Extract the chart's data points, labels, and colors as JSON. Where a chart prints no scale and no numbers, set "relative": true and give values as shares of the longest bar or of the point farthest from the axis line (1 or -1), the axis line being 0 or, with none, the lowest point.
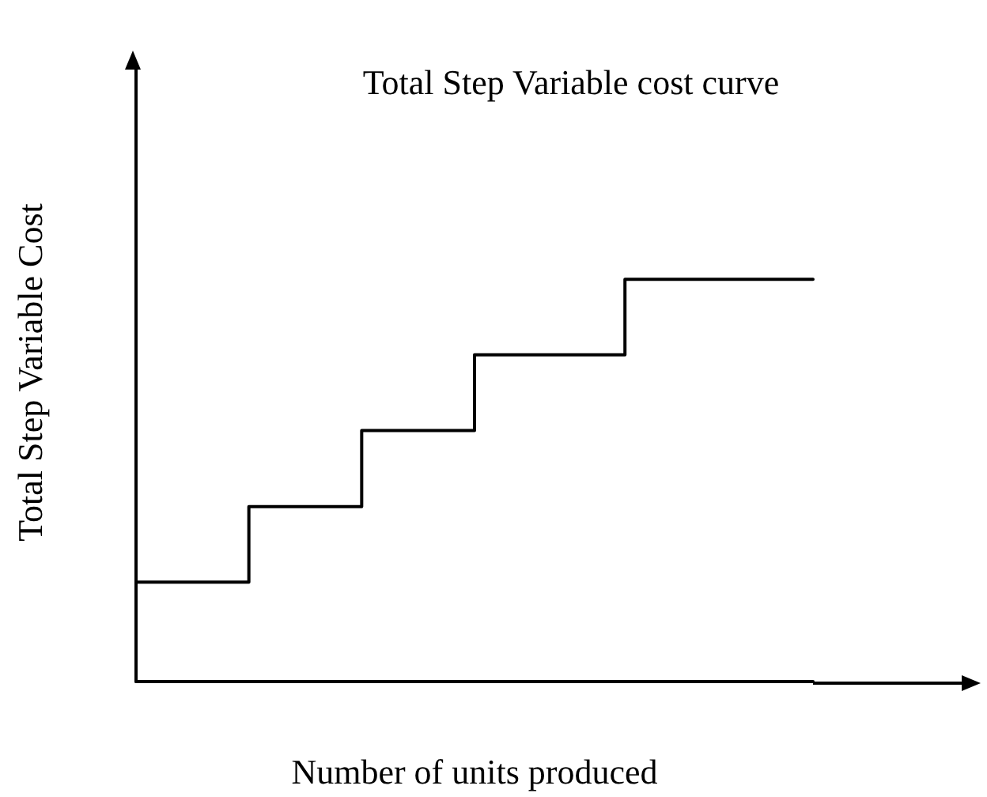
{
  "chart_data": {
    "type": "step",
    "title": "Total Step Variable cost curve",
    "xlabel": "Number of units produced",
    "ylabel": "Total Step Variable Cost",
    "relative": true,
    "categories": [
      null,
      null,
      null,
      null,
      null,
      null,
      null,
      null,
      null,
      null,
      null,
      null,
      null,
      null,
      null,
      null,
      null,
      null,
      null
    ],
    "series": [
      {
        "color": "#000000",
        "values": [
          0.247,
          0.247,
          0.247,
          0.435,
          0.435,
          0.435,
          0.624,
          0.624,
          0.624,
          0.812,
          0.812,
          0.812,
          0.812,
          1,
          1,
          1,
          1,
          1,
          1
        ]
      }
    ],
    "grid": false,
    "marker": "none",
    "line_style": "solid"
  }
}
